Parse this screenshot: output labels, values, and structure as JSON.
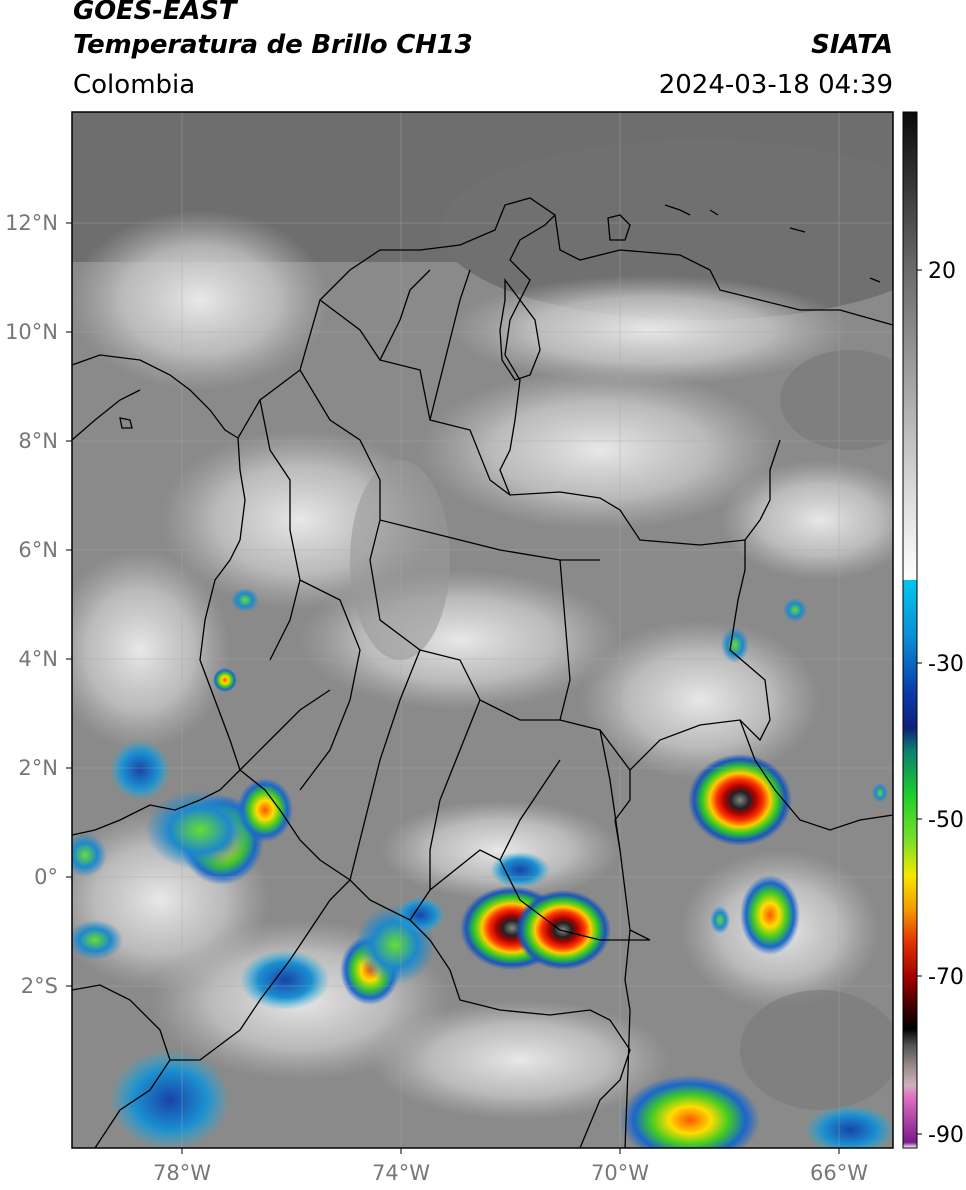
{
  "header": {
    "satellite": "GOES-EAST",
    "product": "Temperatura de Brillo CH13",
    "region": "Colombia",
    "organization": "SIATA",
    "datetime": "2024-03-18 04:39"
  },
  "map": {
    "lat_ticks": [
      "12°N",
      "10°N",
      "8°N",
      "6°N",
      "4°N",
      "2°N",
      "0°",
      "2°S"
    ],
    "lon_ticks": [
      "78°W",
      "74°W",
      "70°W",
      "66°W"
    ]
  },
  "colorbar": {
    "ticks": [
      "20",
      "-30",
      "-50",
      "-70",
      "-90"
    ],
    "colors": {
      "warm_gray_top": "#111111",
      "cold_cyan": "#00b7e8",
      "deep_blue": "#0b2a9b",
      "green": "#22cc22",
      "yellow": "#f5e600",
      "orange": "#f08a00",
      "red": "#cc0000",
      "magenta": "#e070c0",
      "purple": "#7b1a8a"
    }
  }
}
